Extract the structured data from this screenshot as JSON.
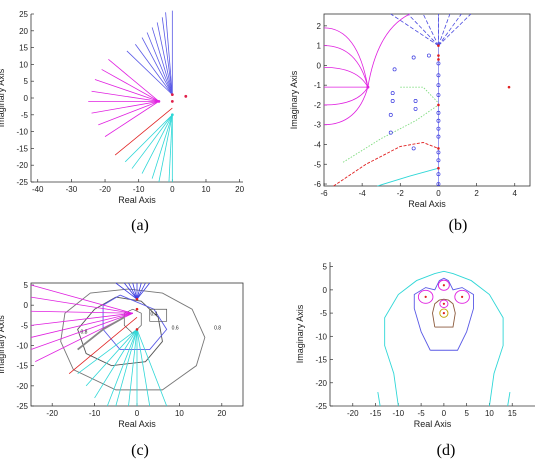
{
  "chart_data": [
    {
      "id": "a",
      "type": "scatter",
      "caption": "(a)",
      "xlabel": "Real Axis",
      "ylabel": "Imaginary Axis",
      "xlim": [
        -42,
        21
      ],
      "ylim": [
        -25,
        25
      ],
      "xticks": [
        -40,
        -30,
        -20,
        -10,
        0,
        10,
        20
      ],
      "yticks": [
        -25,
        -20,
        -15,
        -10,
        -5,
        0,
        5,
        10,
        15,
        20,
        25
      ],
      "box": false,
      "grid": false,
      "points": [
        {
          "x": 0,
          "y": 1,
          "color": "#e0204a"
        },
        {
          "x": 4,
          "y": 0.5,
          "color": "#e0204a"
        },
        {
          "x": 0,
          "y": -1,
          "color": "#e0204a"
        },
        {
          "x": 0,
          "y": -5,
          "color": "#2fd7d7"
        },
        {
          "x": -4,
          "y": -1,
          "color": "#e020e0"
        }
      ],
      "bundles": [
        {
          "name": "blue",
          "color": "#5a5ae6",
          "origin": [
            0,
            1
          ],
          "ends": [
            [
              0,
              26
            ],
            [
              -2,
              25.5
            ],
            [
              -3,
              24
            ],
            [
              -4.5,
              22.5
            ],
            [
              -6,
              21
            ],
            [
              -7.5,
              19.5
            ],
            [
              -9,
              18
            ],
            [
              -11,
              16
            ],
            [
              -13.5,
              14
            ]
          ]
        },
        {
          "name": "magenta",
          "color": "#e020e0",
          "origin": [
            -4,
            -1
          ],
          "ends": [
            [
              -19,
              11.5
            ],
            [
              -21,
              8.5
            ],
            [
              -23,
              5.5
            ],
            [
              -24,
              2
            ],
            [
              -25,
              -1
            ],
            [
              -24,
              -4.5
            ],
            [
              -22,
              -8
            ],
            [
              -20,
              -11.5
            ]
          ]
        },
        {
          "name": "red",
          "color": "#e02020",
          "origin": [
            0,
            -3
          ],
          "ends": [
            [
              -17,
              -17
            ]
          ]
        },
        {
          "name": "cyan",
          "color": "#2fd7d7",
          "origin": [
            0,
            -5
          ],
          "ends": [
            [
              -14,
              -19
            ],
            [
              -12,
              -21
            ],
            [
              -9,
              -22.5
            ],
            [
              -6,
              -24
            ],
            [
              -4,
              -25
            ],
            [
              -1,
              -25
            ],
            [
              0,
              -25
            ]
          ]
        }
      ]
    },
    {
      "id": "b",
      "type": "scatter",
      "caption": "(b)",
      "xlabel": "Real Axis",
      "ylabel": "Imaginary Axis",
      "xlim": [
        -6,
        4.8
      ],
      "ylim": [
        -6.1,
        2.6
      ],
      "xticks": [
        -6,
        -4,
        -2,
        0,
        2,
        4
      ],
      "yticks": [
        -6,
        -5,
        -4,
        -3,
        -2,
        -1,
        0,
        1,
        2
      ],
      "box": true,
      "grid": false,
      "red_points": [
        [
          0,
          1
        ],
        [
          0,
          0.5
        ],
        [
          0,
          0.3
        ],
        [
          3.7,
          -1.1
        ],
        [
          0,
          -2
        ],
        [
          0,
          -4.2
        ],
        [
          0,
          -5.2
        ]
      ],
      "blue_circles": [
        [
          -1.3,
          0.4
        ],
        [
          -2.3,
          -0.2
        ],
        [
          -2.4,
          -1.4
        ],
        [
          -2.4,
          -1.8
        ],
        [
          -2.5,
          -2.5
        ],
        [
          -2.5,
          -3.4
        ],
        [
          -1.2,
          -1.8
        ],
        [
          -1.2,
          -2.2
        ],
        [
          -1.3,
          -4.2
        ],
        [
          -0.5,
          0.5
        ],
        [
          0,
          0.1
        ],
        [
          0,
          -0.5
        ],
        [
          0,
          -1.0
        ],
        [
          0,
          -1.5
        ],
        [
          0,
          -2.4
        ],
        [
          0,
          -2.8
        ],
        [
          0,
          -3.2
        ],
        [
          0,
          -3.6
        ],
        [
          0,
          -4.4
        ],
        [
          0,
          -4.8
        ],
        [
          0,
          -5.5
        ],
        [
          0,
          -6.0
        ]
      ],
      "magenta_origin": [
        -3.7,
        -1.1
      ],
      "magenta_ends": [
        [
          -6,
          1.9
        ],
        [
          -6,
          1.0
        ],
        [
          -6,
          -0.1
        ],
        [
          -6,
          -1.1
        ],
        [
          -6,
          -2.0
        ],
        [
          -6,
          -3.0
        ]
      ],
      "magenta_right": [
        -1.5,
        2.6
      ],
      "dashed_origin": [
        0,
        1
      ],
      "dashed_ends": [
        [
          -2.5,
          2.6
        ],
        [
          -1.6,
          2.6
        ],
        [
          -0.8,
          2.6
        ],
        [
          0,
          2.6
        ],
        [
          0.6,
          2.6
        ],
        [
          1.2,
          2.6
        ],
        [
          1.7,
          2.6
        ]
      ],
      "green": [
        [
          -2,
          -1.1
        ],
        [
          -0.8,
          -1.1
        ],
        [
          0,
          -1.9
        ]
      ],
      "green2": [
        [
          -5,
          -4.9
        ],
        [
          -3,
          -3.7
        ],
        [
          -1.2,
          -2.8
        ],
        [
          0,
          -2.0
        ]
      ],
      "red_dash": [
        [
          -5.5,
          -6.1
        ],
        [
          -3.8,
          -5.0
        ],
        [
          -2,
          -4.1
        ],
        [
          -0.8,
          -3.9
        ],
        [
          0,
          -4.2
        ]
      ],
      "cyan": [
        [
          -3.2,
          -6.1
        ],
        [
          -1.5,
          -5.6
        ],
        [
          0,
          -5.2
        ]
      ]
    },
    {
      "id": "c",
      "type": "scatter",
      "caption": "(c)",
      "xlabel": "Real Axis",
      "ylabel": "Imaginary Axis",
      "xlim": [
        -25,
        25
      ],
      "ylim": [
        -25,
        5.5
      ],
      "xticks": [
        -20,
        -10,
        0,
        10,
        20
      ],
      "yticks": [
        -25,
        -20,
        -15,
        -10,
        -5,
        0,
        5
      ],
      "box": true,
      "grid": false,
      "contour_label": "0.8",
      "contour_label_b": "0.4",
      "contour_label_c": "0.6",
      "magenta_origin": [
        -1,
        -2
      ],
      "magenta_ends": [
        [
          -25,
          5
        ],
        [
          -25,
          2
        ],
        [
          -25,
          -1.5
        ],
        [
          -25,
          -5
        ],
        [
          -25,
          -8
        ],
        [
          -25,
          -11
        ],
        [
          -24,
          -14
        ]
      ],
      "blue_origin": [
        0,
        1.5
      ],
      "blue_ends": [
        [
          -5,
          5.5
        ],
        [
          -3,
          5.5
        ],
        [
          -2,
          5.5
        ],
        [
          -1,
          5.5
        ],
        [
          0,
          5.5
        ],
        [
          1,
          5.5
        ],
        [
          2,
          5.5
        ],
        [
          3,
          5.5
        ]
      ],
      "cyan_origin": [
        0,
        -6
      ],
      "cyan_ends": [
        [
          -14,
          -17
        ],
        [
          -12,
          -20
        ],
        [
          -10,
          -23
        ],
        [
          -7,
          -25
        ],
        [
          -5,
          -25
        ],
        [
          -2,
          -25
        ],
        [
          0,
          -25
        ],
        [
          3,
          -25
        ],
        [
          7,
          -25
        ]
      ],
      "red_end": [
        -16,
        -17
      ]
    },
    {
      "id": "d",
      "type": "scatter",
      "caption": "(d)",
      "xlabel": "Real Axis",
      "ylabel": "Imaginary Axis",
      "xlim": [
        -25,
        20
      ],
      "ylim": [
        -25,
        6
      ],
      "xticks": [
        -20,
        -15,
        -10,
        -5,
        0,
        5,
        10,
        15
      ],
      "yticks": [
        -25,
        -20,
        -15,
        -10,
        -5,
        0,
        5
      ],
      "box": false,
      "grid": false,
      "poles": [
        [
          0,
          1
        ],
        [
          -4,
          -1.5
        ],
        [
          4,
          -1.5
        ],
        [
          0,
          -3
        ],
        [
          0,
          -5
        ]
      ]
    }
  ]
}
